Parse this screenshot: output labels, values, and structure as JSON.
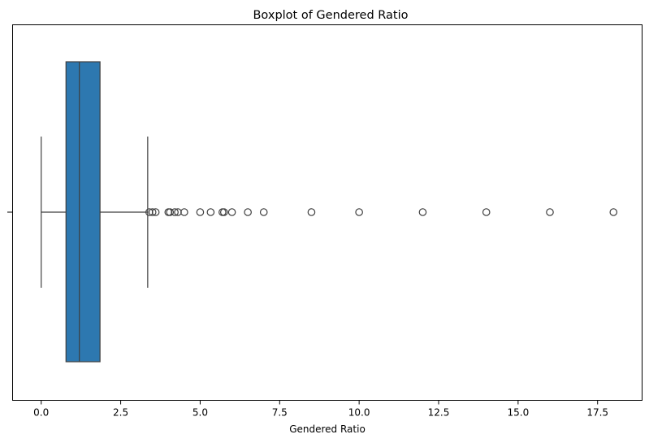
{
  "chart_data": {
    "type": "boxplot",
    "title": "Boxplot of Gendered Ratio",
    "xlabel": "Gendered Ratio",
    "ylabel": "",
    "xlim": [
      -0.9,
      18.9
    ],
    "x_ticks": [
      0.0,
      2.5,
      5.0,
      7.5,
      10.0,
      12.5,
      15.0,
      17.5
    ],
    "x_tick_labels": [
      "0.0",
      "2.5",
      "5.0",
      "7.5",
      "10.0",
      "12.5",
      "15.0",
      "17.5"
    ],
    "grid": false,
    "box": {
      "whisker_low": 0.0,
      "q1": 0.78,
      "median": 1.2,
      "q3": 1.85,
      "whisker_high": 3.35
    },
    "outliers": [
      3.4,
      3.5,
      3.6,
      4.0,
      4.05,
      4.2,
      4.3,
      4.5,
      5.0,
      5.33,
      5.7,
      5.75,
      6.0,
      6.5,
      7.0,
      8.5,
      10.0,
      12.0,
      14.0,
      16.0,
      18.0
    ],
    "colors": {
      "box_fill": "#2d78b0",
      "line": "#3f3f3f",
      "outlier_edge": "#3f3f3f",
      "axes": "#000000"
    }
  }
}
